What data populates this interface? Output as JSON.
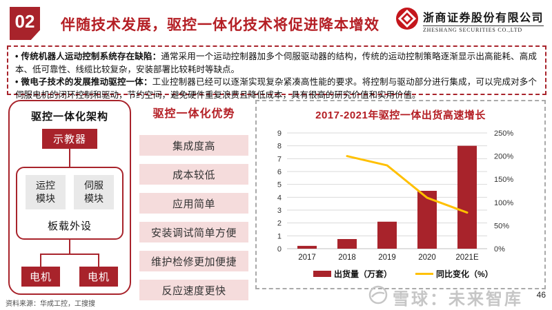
{
  "header": {
    "badge": "02",
    "title": "伴随技术发展，驱控一体化技术将促进降本增效",
    "logo": {
      "company_cn": "浙商证券股份有限公司",
      "company_en": "ZHESHANG SECURITIES CO.,LTD"
    }
  },
  "summary": {
    "bullets": [
      {
        "lead": "传统机器人运动控制系统存在缺陷：",
        "text": "通常采用一个运动控制器加多个伺服驱动器的结构，传统的运动控制策略逐渐显示出高能耗、高成本、低可靠性、线缆比较复杂，安装部署比较耗时等缺点。"
      },
      {
        "lead": "微电子技术的发展推动驱控一体：",
        "text": "工业控制器已经可以逐渐实现复杂紧凑高性能的要求。将控制与驱动部分进行集成，可以完成对多个伺服电机的闭环控制和驱动，节约空间，避免硬件重复浪费且降低成本，具有很高的研究价值和实用价值。"
      }
    ]
  },
  "architecture": {
    "title": "驱控一体化架构",
    "teach_pendant": "示教器",
    "modules": [
      "运控\n模块",
      "伺服\n模块"
    ],
    "onboard": "板载外设",
    "motors": [
      "电机",
      "电机"
    ]
  },
  "advantages": {
    "title": "驱控一体化优势",
    "items": [
      "集成度高",
      "成本较低",
      "应用简单",
      "安装调试简单方便",
      "维护检修更加便捷",
      "反应速度更快"
    ]
  },
  "chart_data": {
    "type": "bar+line",
    "title": "2017-2021年驱控一体出货高速增长",
    "categories": [
      "2017",
      "2018",
      "2019",
      "2020",
      "2021E"
    ],
    "series": [
      {
        "name": "出货量（万套）",
        "type": "bar",
        "axis": "left",
        "color": "#A8232B",
        "values": [
          0.22,
          0.75,
          2.1,
          4.5,
          8.0
        ]
      },
      {
        "name": "同比变化（%）",
        "type": "line",
        "axis": "right",
        "color": "#FFC000",
        "values": [
          null,
          200,
          180,
          110,
          78
        ]
      }
    ],
    "left_axis": {
      "min": 0,
      "max": 9,
      "step": 1,
      "ticks": [
        "0",
        "1",
        "2",
        "3",
        "4",
        "5",
        "6",
        "7",
        "8",
        "9"
      ]
    },
    "right_axis": {
      "min": 0,
      "max": 250,
      "step": 50,
      "ticks": [
        "0%",
        "50%",
        "100%",
        "150%",
        "200%",
        "250%"
      ]
    },
    "grid": true,
    "legend_position": "bottom"
  },
  "footer": {
    "source": "资料来源：华成工控，工搜搜",
    "watermark": "雪球：未来智库",
    "page_number": "46"
  },
  "colors": {
    "accent_red": "#B41E24",
    "box_red": "#A8232B",
    "pink": "#F5DCDC",
    "line_yellow": "#FFC000",
    "grid_gray": "#D9D9D9"
  }
}
